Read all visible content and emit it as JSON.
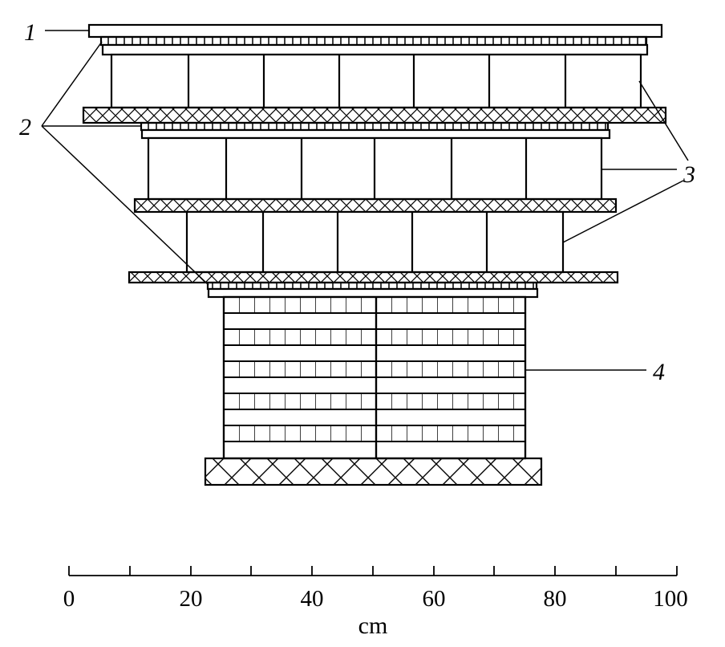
{
  "callouts": {
    "c1": "1",
    "c2": "2",
    "c3": "3",
    "c4": "4"
  },
  "scale": {
    "ticks": [
      "0",
      "20",
      "40",
      "60",
      "80",
      "100"
    ],
    "unit": "cm"
  }
}
